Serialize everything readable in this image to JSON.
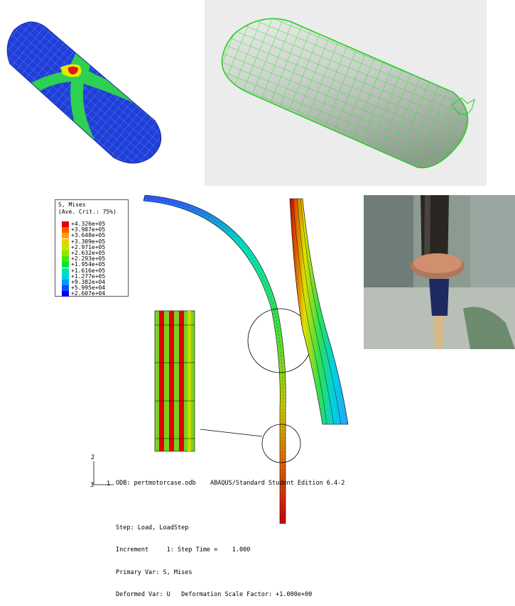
{
  "legend": {
    "title_line1": "S, Mises",
    "title_line2": "(Ave. Crit.: 75%)",
    "values": [
      "+4.326e+05",
      "+3.987e+05",
      "+3.648e+05",
      "+3.309e+05",
      "+2.971e+05",
      "+2.632e+05",
      "+2.293e+05",
      "+1.954e+05",
      "+1.616e+05",
      "+1.277e+05",
      "+9.382e+04",
      "+5.995e+04",
      "+2.607e+04"
    ],
    "colors": [
      "#e60000",
      "#ff5a00",
      "#ffa000",
      "#e6d200",
      "#c8e600",
      "#8ce600",
      "#46e600",
      "#00e63c",
      "#00e6a0",
      "#00d2e6",
      "#0096ff",
      "#0050ff",
      "#0000e6"
    ]
  },
  "abaqus_info": {
    "odb": "ODB: pertmotorcase.odb    ABAQUS/Standard Student Edition 6.4-2",
    "step": "Step: Load, LoadStep",
    "increment": "Increment     1: Step Time =    1.000",
    "primary_var": "Primary Var: S, Mises",
    "deformed_var": "Deformed Var: U   Deformation Scale Factor: +1.000e+00"
  },
  "triad": {
    "axis_y": "2",
    "axis_z": "3",
    "axis_x": "1"
  }
}
